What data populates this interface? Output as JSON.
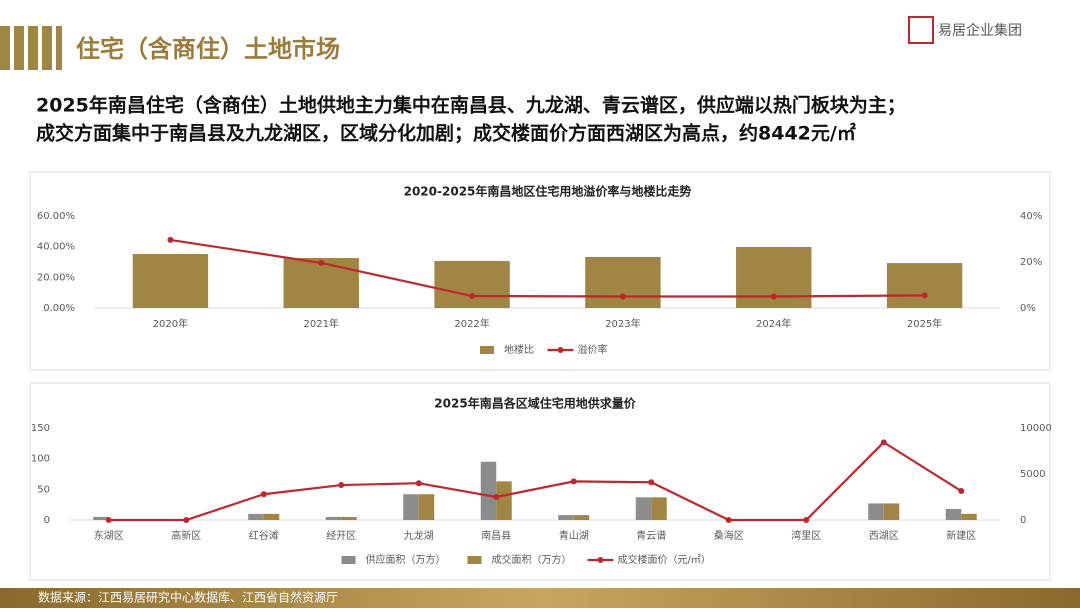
{
  "header": {
    "title": "住宅（含商住）土地市场",
    "logo": "易居企业集团"
  },
  "headline": [
    "2025年南昌住宅（含商住）土地供地主力集中在南昌县、九龙湖、青云谱区，供应端以热门板块为主；",
    "成交方面集中于南昌县及九龙湖区，区域分化加剧；成交楼面价方面西湖区为高点，约8442元/㎡"
  ],
  "source": "数据来源：江西易居研究中心数据库、江西省自然资源厅",
  "chart_data": [
    {
      "type": "combo",
      "title": "2020-2025年南昌地区住宅用地溢价率与地楼比走势",
      "categories": [
        "2020年",
        "2021年",
        "2022年",
        "2023年",
        "2024年",
        "2025年"
      ],
      "series": [
        {
          "name": "地楼比",
          "color": "#a08543",
          "values": [
            35.2,
            32.6,
            30.7,
            33.3,
            39.8,
            29.3
          ]
        },
        {
          "name": "溢价率",
          "color": "#c0272d",
          "axis": "y2",
          "values": [
            29.6,
            19.6,
            5.2,
            5.0,
            5.0,
            5.5
          ]
        }
      ],
      "ylim": [
        0,
        60
      ],
      "yticks": [
        {
          "value": 0,
          "label": "0.00%"
        },
        {
          "value": 20,
          "label": "20.00%"
        },
        {
          "value": 40,
          "label": "40.00%"
        },
        {
          "value": 60,
          "label": "60.00%"
        }
      ],
      "y2lim": [
        0,
        40
      ],
      "y2ticks": [
        {
          "value": 0,
          "label": "0%"
        },
        {
          "value": 20,
          "label": "20%"
        },
        {
          "value": 40,
          "label": "40%"
        }
      ],
      "grid": false,
      "legend": "bottom"
    },
    {
      "type": "combo",
      "title": "2025年南昌各区域住宅用地供求量价",
      "categories": [
        "东湖区",
        "高新区",
        "红谷滩",
        "经开区",
        "九龙湖",
        "南昌县",
        "青山湖",
        "青云谱",
        "桑海区",
        "湾里区",
        "西湖区",
        "新建区"
      ],
      "series": [
        {
          "name": "供应面积（万方）",
          "color": "#8c8c8c",
          "values": [
            5,
            0,
            10,
            5,
            42,
            95,
            8,
            37,
            0,
            0,
            27,
            18
          ]
        },
        {
          "name": "成交面积（万方）",
          "color": "#a08543",
          "values": [
            0,
            0,
            10,
            5,
            42,
            63,
            8,
            37,
            0,
            0,
            27,
            10
          ]
        },
        {
          "name": "成交楼面价（元/㎡）",
          "color": "#c0272d",
          "axis": "y2",
          "values": [
            0,
            0,
            2800,
            3800,
            4000,
            2500,
            4200,
            4100,
            0,
            0,
            8442,
            3150
          ]
        }
      ],
      "ylim": [
        0,
        150
      ],
      "yticks": [
        0,
        50,
        100,
        150
      ],
      "y2lim": [
        0,
        10000
      ],
      "y2ticks": [
        0,
        5000,
        10000
      ],
      "grid": false,
      "legend": "bottom"
    }
  ]
}
